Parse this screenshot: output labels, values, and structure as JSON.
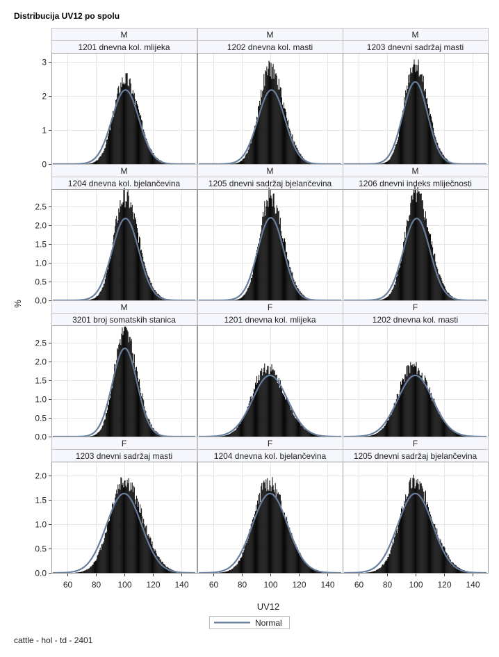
{
  "title": "Distribucija UV12 po spolu",
  "footnote": "cattle - hol - td - 2401",
  "chart_data": {
    "type": "bar",
    "title": "Distribucija UV12 po spolu",
    "xlabel": "UV12",
    "ylabel": "%",
    "xlim": [
      50,
      150
    ],
    "x_ticks": [
      "60",
      "80",
      "100",
      "120",
      "140"
    ],
    "row_y_ticks": [
      [
        "0",
        "1",
        "2",
        "3"
      ],
      [
        "0.0",
        "0.5",
        "1.0",
        "1.5",
        "2.0",
        "2.5"
      ],
      [
        "0.0",
        "0.5",
        "1.0",
        "1.5",
        "2.0",
        "2.5"
      ],
      [
        "0.0",
        "0.5",
        "1.0",
        "1.5",
        "2.0"
      ]
    ],
    "row_ylim": [
      [
        0,
        3.15
      ],
      [
        0,
        2.85
      ],
      [
        0,
        2.85
      ],
      [
        0,
        2.2
      ]
    ],
    "grid": true,
    "legend": {
      "entries": [
        "Normal"
      ],
      "position": "bottom-center"
    },
    "panels": [
      {
        "sex": "M",
        "trait": "1201 dnevna kol. mlijeka",
        "hist_peak": 2.5,
        "hist_mean": 100.5,
        "normal_mean": 101,
        "normal_sd": 9.5,
        "normal_peak": 2.18
      },
      {
        "sex": "M",
        "trait": "1202 dnevna kol. masti",
        "hist_peak": 2.8,
        "hist_mean": 100,
        "normal_mean": 101,
        "normal_sd": 9.5,
        "normal_peak": 2.18
      },
      {
        "sex": "M",
        "trait": "1203 dnevni sadržaj masti",
        "hist_peak": 3.0,
        "hist_mean": 99.5,
        "normal_mean": 100,
        "normal_sd": 8.7,
        "normal_peak": 2.42
      },
      {
        "sex": "M",
        "trait": "1204 dnevna kol. bjelančevina",
        "hist_peak": 2.75,
        "hist_mean": 100.5,
        "normal_mean": 101,
        "normal_sd": 9.4,
        "normal_peak": 2.18
      },
      {
        "sex": "M",
        "trait": "1205 dnevni sadržaj bjelančevina",
        "hist_peak": 2.75,
        "hist_mean": 100,
        "normal_mean": 100.5,
        "normal_sd": 9.1,
        "normal_peak": 2.2
      },
      {
        "sex": "M",
        "trait": "1206 dnevni indeks mliječnosti",
        "hist_peak": 2.8,
        "hist_mean": 100.5,
        "normal_mean": 101,
        "normal_sd": 9.4,
        "normal_peak": 2.18
      },
      {
        "sex": "M",
        "trait": "3201 broj somatskih stanica",
        "hist_peak": 2.8,
        "hist_mean": 100,
        "normal_mean": 100.5,
        "normal_sd": 8.7,
        "normal_peak": 2.35
      },
      {
        "sex": "F",
        "trait": "1201 dnevna kol. mlijeka",
        "hist_peak": 1.85,
        "hist_mean": 97.5,
        "normal_mean": 100,
        "normal_sd": 12.3,
        "normal_peak": 1.63
      },
      {
        "sex": "F",
        "trait": "1202 dnevna kol. masti",
        "hist_peak": 1.87,
        "hist_mean": 98,
        "normal_mean": 100,
        "normal_sd": 12.3,
        "normal_peak": 1.63
      },
      {
        "sex": "F",
        "trait": "1203 dnevni sadržaj masti",
        "hist_peak": 1.9,
        "hist_mean": 100,
        "normal_mean": 100,
        "normal_sd": 12.3,
        "normal_peak": 1.63
      },
      {
        "sex": "F",
        "trait": "1204 dnevna kol. bjelančevina",
        "hist_peak": 1.85,
        "hist_mean": 98.5,
        "normal_mean": 100,
        "normal_sd": 12.3,
        "normal_peak": 1.63
      },
      {
        "sex": "F",
        "trait": "1205 dnevni sadržaj bjelančevina",
        "hist_peak": 1.85,
        "hist_mean": 99.5,
        "normal_mean": 100,
        "normal_sd": 12.3,
        "normal_peak": 1.63
      }
    ],
    "colors": {
      "bars": "#0a0a0a",
      "normal": "#677e9c",
      "strip": "#f5f7fc"
    }
  }
}
